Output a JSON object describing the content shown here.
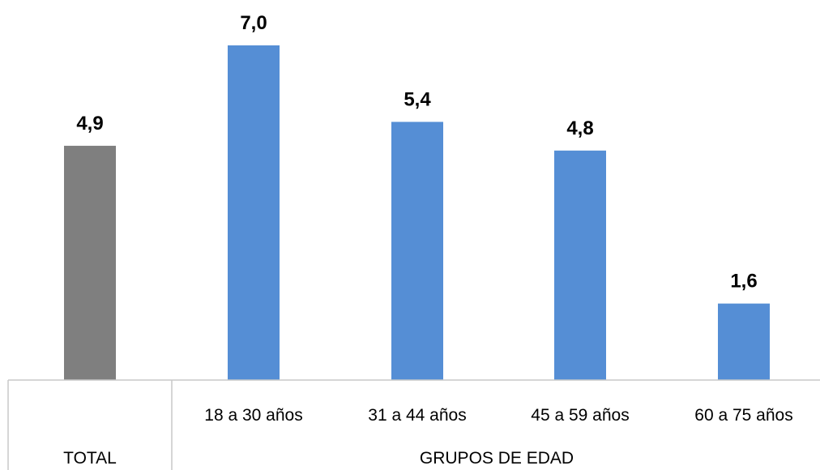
{
  "chart_data": {
    "type": "bar",
    "categories": [
      "TOTAL",
      "18 a 30 años",
      "31 a 44 años",
      "45 a 59 años",
      "60 a 75 años"
    ],
    "values": [
      4.9,
      7.0,
      5.4,
      4.8,
      1.6
    ],
    "value_labels": [
      "4,9",
      "7,0",
      "5,4",
      "4,8",
      "1,6"
    ],
    "group_labels": [
      "",
      "18 a 30 años",
      "31 a 44 años",
      "45 a 59 años",
      "60 a 75 años"
    ],
    "bottom_labels": {
      "total": "TOTAL",
      "groups": "GRUPOS DE EDAD"
    },
    "colors": [
      "#7f7f7f",
      "#558ed5",
      "#558ed5",
      "#558ed5",
      "#558ed5"
    ],
    "ylim": [
      0,
      7.0
    ],
    "grid": false,
    "legend": "none",
    "title": "",
    "xlabel": "",
    "ylabel": ""
  }
}
